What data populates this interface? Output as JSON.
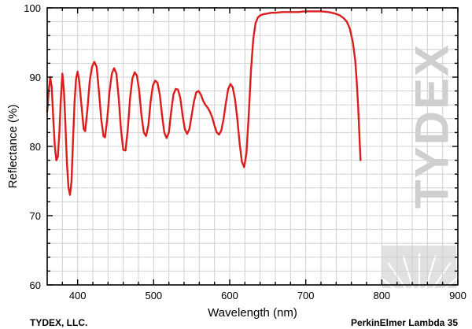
{
  "chart_data": {
    "type": "line",
    "xlabel": "Wavelength (nm)",
    "ylabel": "Reflectance (%)",
    "xlim": [
      360,
      900
    ],
    "ylim": [
      60,
      100
    ],
    "x_ticks": [
      400,
      500,
      600,
      700,
      800,
      900
    ],
    "y_ticks": [
      60,
      70,
      80,
      90,
      100
    ],
    "grid": true,
    "series": [
      {
        "name": "Reflectance",
        "color": "#dd1c1c",
        "points": [
          [
            360,
            85.0
          ],
          [
            362,
            88.0
          ],
          [
            364,
            90.0
          ],
          [
            366,
            88.5
          ],
          [
            368,
            84.0
          ],
          [
            370,
            80.0
          ],
          [
            372,
            78.0
          ],
          [
            374,
            78.5
          ],
          [
            376,
            82.0
          ],
          [
            378,
            87.0
          ],
          [
            380,
            90.5
          ],
          [
            382,
            88.0
          ],
          [
            384,
            83.0
          ],
          [
            386,
            77.5
          ],
          [
            388,
            74.0
          ],
          [
            390,
            73.0
          ],
          [
            392,
            75.0
          ],
          [
            394,
            81.0
          ],
          [
            396,
            86.5
          ],
          [
            398,
            89.8
          ],
          [
            400,
            90.8
          ],
          [
            402,
            89.5
          ],
          [
            405,
            86.0
          ],
          [
            408,
            82.5
          ],
          [
            410,
            82.2
          ],
          [
            413,
            85.5
          ],
          [
            416,
            89.5
          ],
          [
            419,
            91.5
          ],
          [
            422,
            92.2
          ],
          [
            425,
            91.5
          ],
          [
            428,
            88.0
          ],
          [
            431,
            84.0
          ],
          [
            434,
            81.5
          ],
          [
            436,
            81.3
          ],
          [
            439,
            84.0
          ],
          [
            442,
            88.0
          ],
          [
            445,
            90.5
          ],
          [
            448,
            91.3
          ],
          [
            451,
            90.5
          ],
          [
            454,
            87.0
          ],
          [
            457,
            82.5
          ],
          [
            460,
            79.5
          ],
          [
            463,
            79.4
          ],
          [
            466,
            82.5
          ],
          [
            469,
            87.0
          ],
          [
            472,
            89.8
          ],
          [
            475,
            90.7
          ],
          [
            478,
            90.2
          ],
          [
            481,
            88.0
          ],
          [
            484,
            84.5
          ],
          [
            487,
            82.0
          ],
          [
            490,
            81.5
          ],
          [
            493,
            83.0
          ],
          [
            496,
            86.5
          ],
          [
            499,
            88.8
          ],
          [
            502,
            89.5
          ],
          [
            505,
            89.2
          ],
          [
            508,
            87.5
          ],
          [
            511,
            84.5
          ],
          [
            514,
            82.0
          ],
          [
            517,
            81.2
          ],
          [
            520,
            82.0
          ],
          [
            523,
            85.0
          ],
          [
            526,
            87.5
          ],
          [
            529,
            88.3
          ],
          [
            532,
            88.2
          ],
          [
            535,
            87.0
          ],
          [
            538,
            84.5
          ],
          [
            541,
            82.5
          ],
          [
            544,
            81.8
          ],
          [
            547,
            82.5
          ],
          [
            550,
            84.5
          ],
          [
            553,
            86.5
          ],
          [
            556,
            87.8
          ],
          [
            559,
            88.0
          ],
          [
            562,
            87.5
          ],
          [
            565,
            86.6
          ],
          [
            568,
            86.0
          ],
          [
            571,
            85.6
          ],
          [
            574,
            85.0
          ],
          [
            577,
            84.2
          ],
          [
            580,
            83.0
          ],
          [
            583,
            82.0
          ],
          [
            586,
            81.7
          ],
          [
            589,
            82.3
          ],
          [
            592,
            84.0
          ],
          [
            595,
            86.3
          ],
          [
            598,
            88.3
          ],
          [
            601,
            89.0
          ],
          [
            604,
            88.5
          ],
          [
            607,
            86.8
          ],
          [
            610,
            84.0
          ],
          [
            613,
            80.5
          ],
          [
            616,
            77.8
          ],
          [
            619,
            77.0
          ],
          [
            622,
            79.0
          ],
          [
            625,
            84.5
          ],
          [
            628,
            91.0
          ],
          [
            631,
            95.5
          ],
          [
            634,
            97.8
          ],
          [
            637,
            98.6
          ],
          [
            640,
            98.9
          ],
          [
            645,
            99.1
          ],
          [
            650,
            99.2
          ],
          [
            655,
            99.3
          ],
          [
            660,
            99.3
          ],
          [
            670,
            99.4
          ],
          [
            680,
            99.4
          ],
          [
            690,
            99.4
          ],
          [
            700,
            99.5
          ],
          [
            710,
            99.5
          ],
          [
            720,
            99.5
          ],
          [
            730,
            99.4
          ],
          [
            738,
            99.2
          ],
          [
            745,
            98.9
          ],
          [
            750,
            98.5
          ],
          [
            754,
            98.0
          ],
          [
            758,
            97.0
          ],
          [
            762,
            95.0
          ],
          [
            765,
            92.5
          ],
          [
            767,
            89.5
          ],
          [
            769,
            85.5
          ],
          [
            770,
            83.0
          ],
          [
            771,
            80.5
          ],
          [
            772,
            78.0
          ]
        ]
      }
    ]
  },
  "footer": {
    "left": "TYDEX, LLC.",
    "right": "PerkinElmer Lambda 35"
  },
  "watermark": {
    "text": "TYDEX"
  },
  "colors": {
    "curve": "#dd1c1c",
    "grid": "#d0d0d0",
    "watermark": "#cfcfcf",
    "axis": "#000000"
  }
}
